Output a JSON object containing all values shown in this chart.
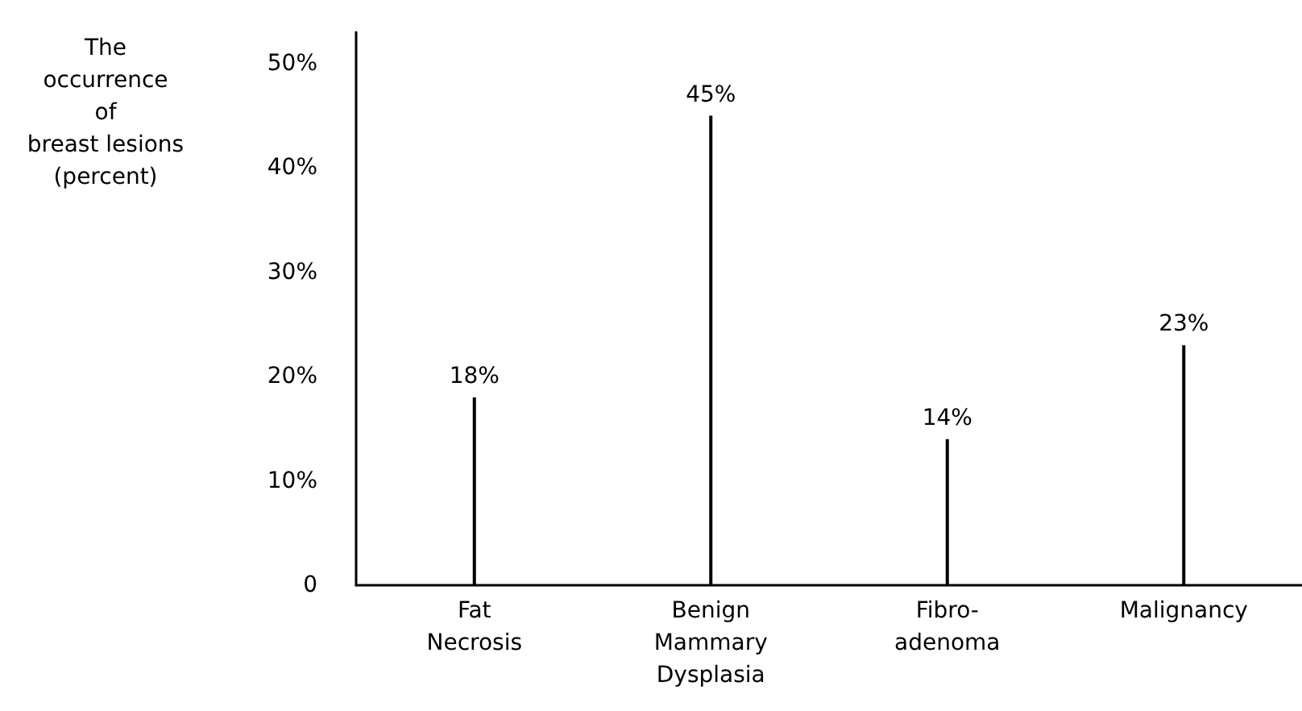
{
  "chart_data": {
    "type": "bar",
    "ylabel": "The\noccurrence\nof\nbreast lesions\n(percent)",
    "categories": [
      "Fat\nNecrosis",
      "Benign\nMammary\nDysplasia",
      "Fibro-\nadenoma",
      "Malignancy"
    ],
    "values": [
      18,
      45,
      14,
      23
    ],
    "value_labels": [
      "18%",
      "45%",
      "14%",
      "23%"
    ],
    "color": "#000000",
    "ylim": [
      0,
      53
    ],
    "yticks": [
      0,
      {
        "value": 10,
        "label": "10%"
      },
      {
        "value": 20,
        "label": "20%"
      },
      {
        "value": 30,
        "label": "30%"
      },
      {
        "value": 40,
        "label": "40%"
      },
      {
        "value": 50,
        "label": "50%"
      }
    ],
    "grid": false
  }
}
